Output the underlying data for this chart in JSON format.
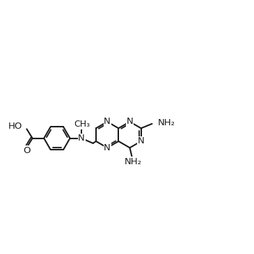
{
  "bg": "#ffffff",
  "lc": "#1a1a1a",
  "lw": 1.5,
  "fs": 9.5,
  "figsize": [
    3.65,
    3.65
  ],
  "dpi": 100,
  "xlim": [
    0.0,
    10.0
  ],
  "ylim": [
    1.5,
    8.5
  ]
}
